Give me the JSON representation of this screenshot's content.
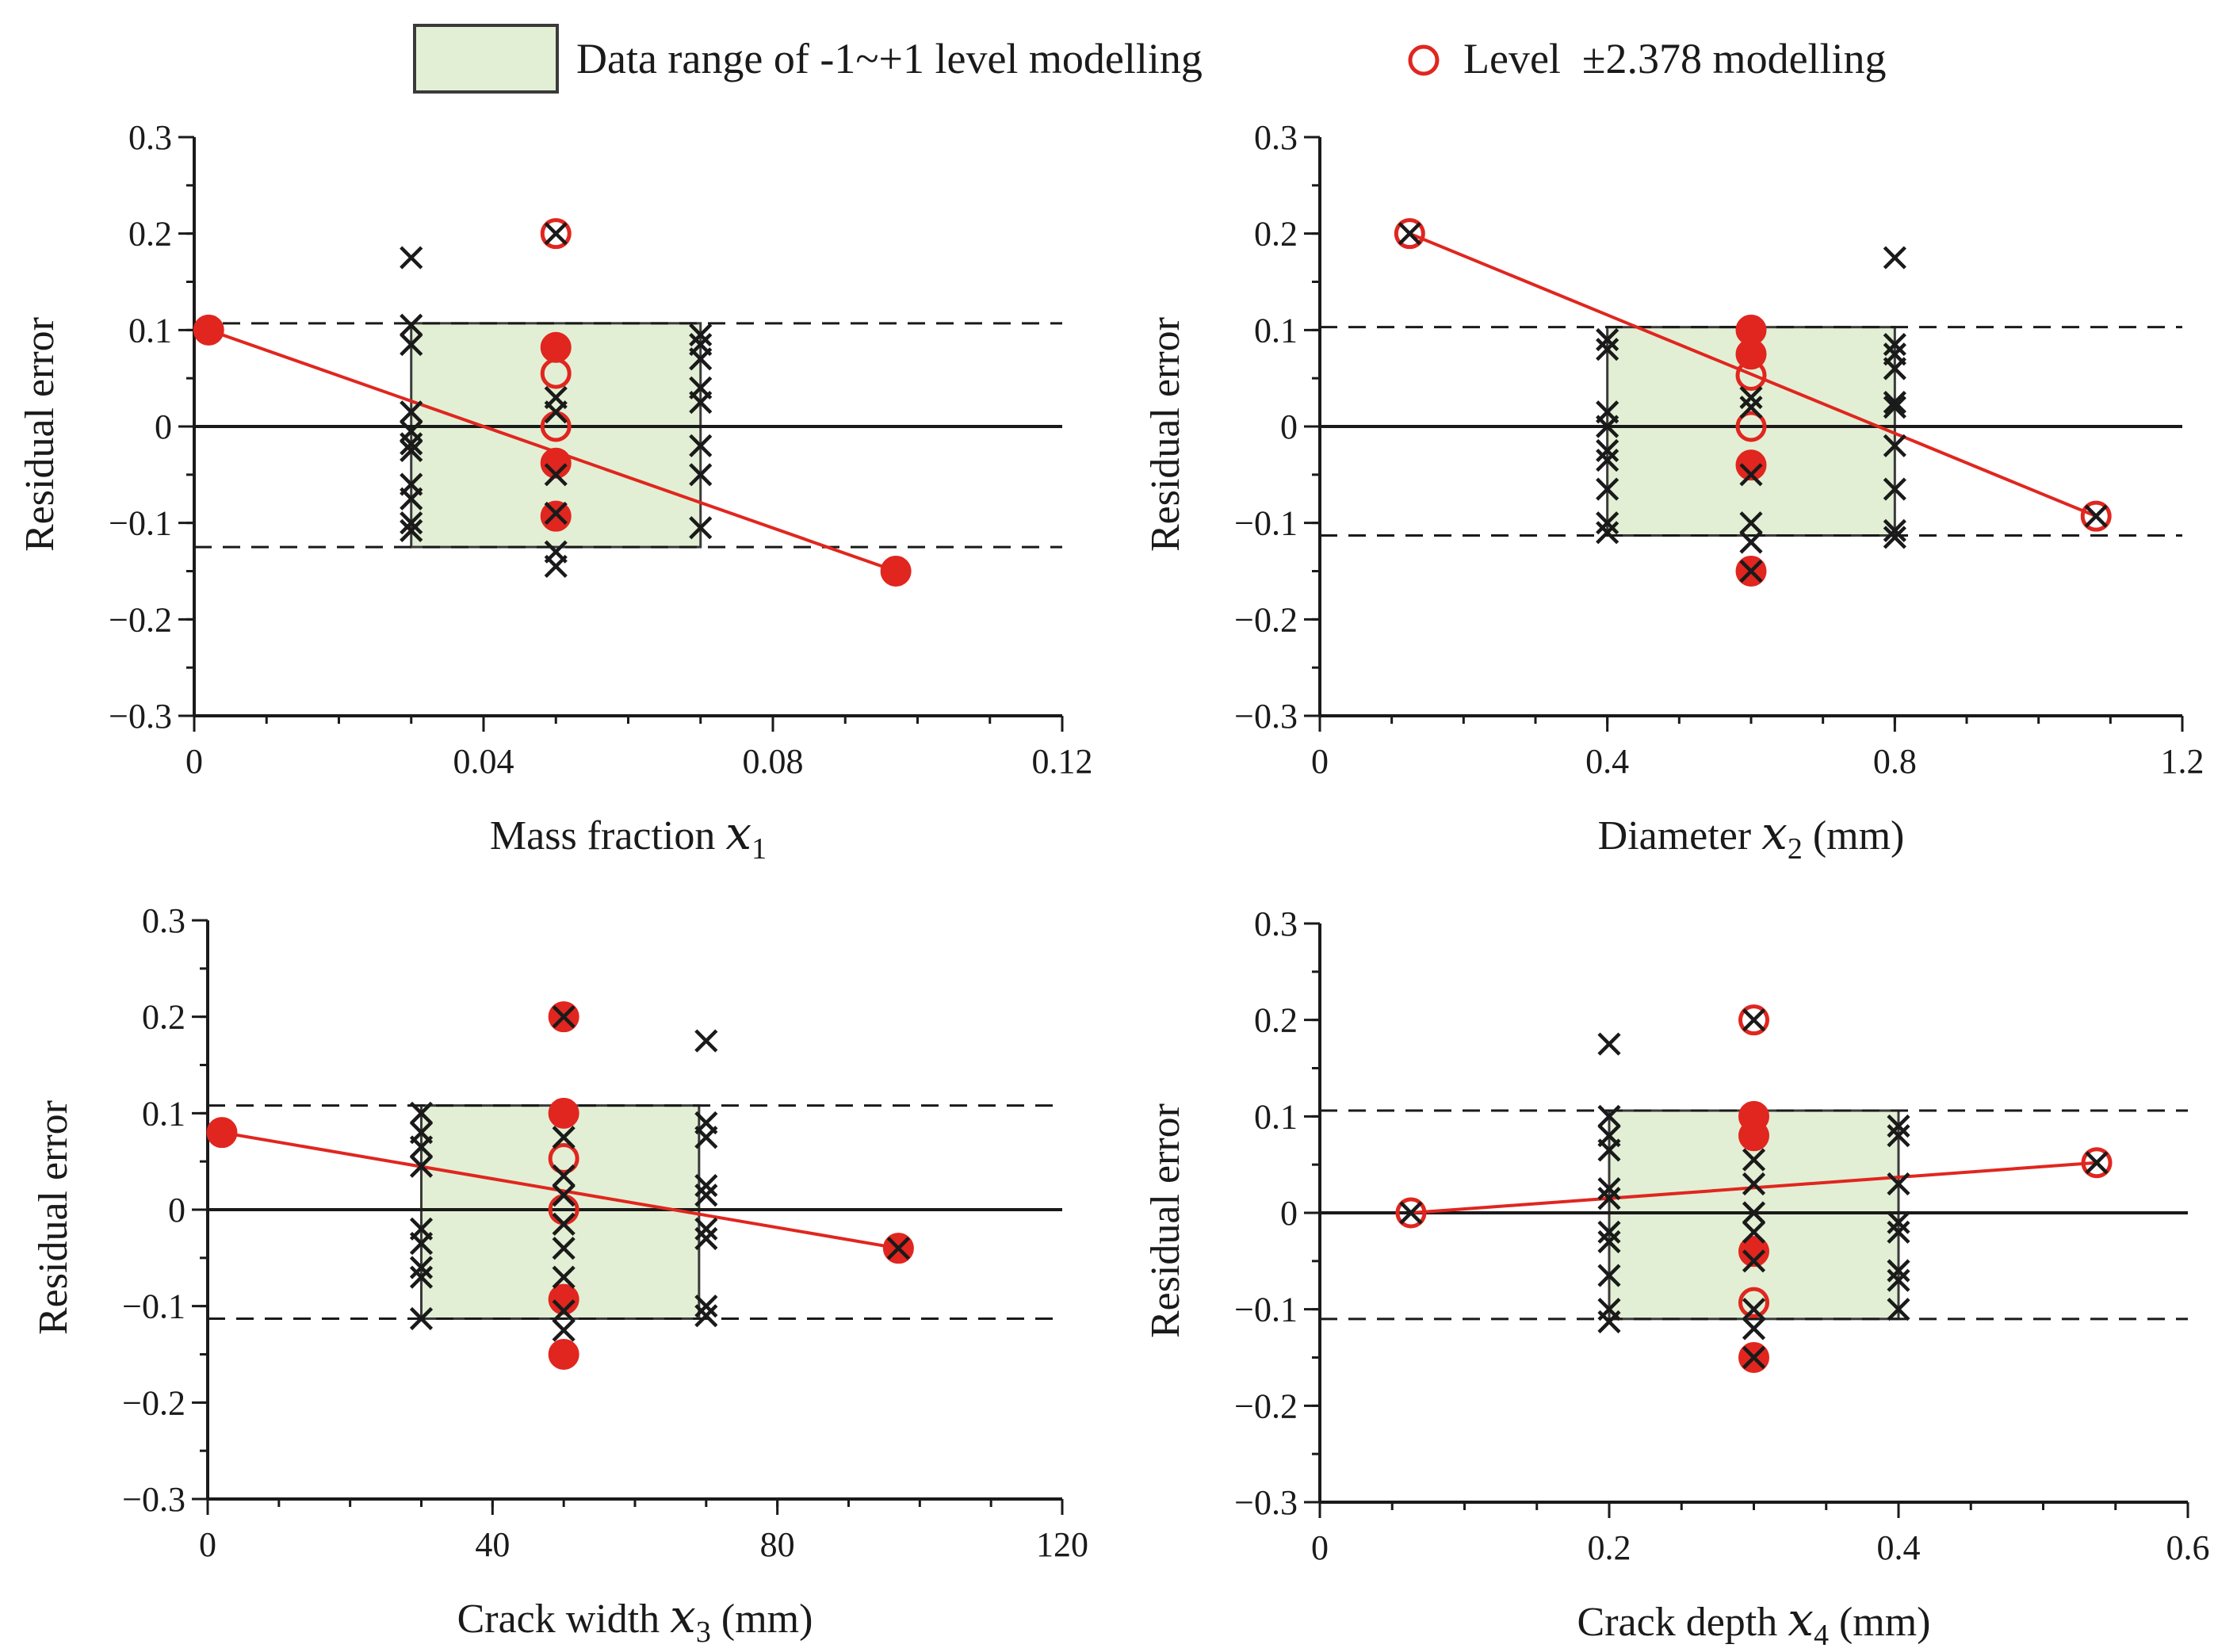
{
  "legend": {
    "range_label": "Data range of -1~+1 level modelling",
    "level_label": "Level  ±2.378 modelling"
  },
  "colors": {
    "accent_red": "#e0261f",
    "range_fill": "#e2efd4",
    "range_stroke": "#3a3a3a",
    "marker_black": "#1a1a1a"
  },
  "chart_data": [
    {
      "type": "scatter",
      "panel": "x1",
      "xlabel": "Mass fraction",
      "var_symbol": "x",
      "var_sub": "1",
      "unit": "",
      "ylabel": "Residual error",
      "xlim": [
        0,
        0.12
      ],
      "ylim": [
        -0.3,
        0.3
      ],
      "x_major_ticks": [
        0,
        0.04,
        0.08,
        0.12
      ],
      "x_tick_labels": [
        "0",
        "0.04",
        "0.08",
        "0.12"
      ],
      "x_minor_step": 0.01,
      "y_ticks": [
        -0.3,
        -0.2,
        -0.1,
        0,
        0.1,
        0.2,
        0.3
      ],
      "y_tick_labels": [
        "−0.3",
        "−0.2",
        "−0.1",
        "0",
        "0.1",
        "0.2",
        "0.3"
      ],
      "y_minor_step": 0.05,
      "range_box": {
        "x": [
          0.03,
          0.07
        ],
        "y": [
          -0.125,
          0.107
        ]
      },
      "dashed_lines": [
        0.107,
        -0.125
      ],
      "trend_line": [
        [
          0.002,
          0.1
        ],
        [
          0.097,
          -0.15
        ]
      ],
      "level_points": [
        {
          "x": 0.002,
          "y": 0.1,
          "filled": true
        },
        {
          "x": 0.05,
          "y": 0.2,
          "filled": false
        },
        {
          "x": 0.05,
          "y": 0.082,
          "filled": true
        },
        {
          "x": 0.05,
          "y": 0.055,
          "filled": false
        },
        {
          "x": 0.05,
          "y": 0.0,
          "filled": false
        },
        {
          "x": 0.05,
          "y": -0.038,
          "filled": true
        },
        {
          "x": 0.05,
          "y": -0.093,
          "filled": true
        },
        {
          "x": 0.097,
          "y": -0.15,
          "filled": true
        }
      ],
      "cross_points": [
        {
          "x": 0.03,
          "y": 0.175
        },
        {
          "x": 0.03,
          "y": 0.105
        },
        {
          "x": 0.03,
          "y": 0.085
        },
        {
          "x": 0.03,
          "y": 0.015
        },
        {
          "x": 0.03,
          "y": -0.005
        },
        {
          "x": 0.03,
          "y": -0.018
        },
        {
          "x": 0.03,
          "y": -0.025
        },
        {
          "x": 0.03,
          "y": -0.06
        },
        {
          "x": 0.03,
          "y": -0.075
        },
        {
          "x": 0.03,
          "y": -0.1
        },
        {
          "x": 0.03,
          "y": -0.108
        },
        {
          "x": 0.05,
          "y": 0.2
        },
        {
          "x": 0.05,
          "y": 0.03
        },
        {
          "x": 0.05,
          "y": 0.015
        },
        {
          "x": 0.05,
          "y": -0.05
        },
        {
          "x": 0.05,
          "y": -0.09
        },
        {
          "x": 0.05,
          "y": -0.13
        },
        {
          "x": 0.05,
          "y": -0.145
        },
        {
          "x": 0.07,
          "y": 0.095
        },
        {
          "x": 0.07,
          "y": 0.085
        },
        {
          "x": 0.07,
          "y": 0.07
        },
        {
          "x": 0.07,
          "y": 0.04
        },
        {
          "x": 0.07,
          "y": 0.025
        },
        {
          "x": 0.07,
          "y": -0.02
        },
        {
          "x": 0.07,
          "y": -0.05
        },
        {
          "x": 0.07,
          "y": -0.105
        }
      ]
    },
    {
      "type": "scatter",
      "panel": "x2",
      "xlabel": "Diameter",
      "var_symbol": "x",
      "var_sub": "2",
      "unit": "(mm)",
      "ylabel": "Residual error",
      "xlim": [
        0,
        1.2
      ],
      "ylim": [
        -0.3,
        0.3
      ],
      "x_major_ticks": [
        0,
        0.4,
        0.8,
        1.2
      ],
      "x_tick_labels": [
        "0",
        "0.4",
        "0.8",
        "1.2"
      ],
      "x_minor_step": 0.1,
      "y_ticks": [
        -0.3,
        -0.2,
        -0.1,
        0,
        0.1,
        0.2,
        0.3
      ],
      "y_tick_labels": [
        "−0.3",
        "−0.2",
        "−0.1",
        "0",
        "0.1",
        "0.2",
        "0.3"
      ],
      "y_minor_step": 0.05,
      "range_box": {
        "x": [
          0.4,
          0.8
        ],
        "y": [
          -0.113,
          0.103
        ]
      },
      "dashed_lines": [
        0.103,
        -0.113
      ],
      "trend_line": [
        [
          0.125,
          0.2
        ],
        [
          1.08,
          -0.093
        ]
      ],
      "level_points": [
        {
          "x": 0.125,
          "y": 0.2,
          "filled": false
        },
        {
          "x": 0.6,
          "y": 0.1,
          "filled": true
        },
        {
          "x": 0.6,
          "y": 0.075,
          "filled": true
        },
        {
          "x": 0.6,
          "y": 0.053,
          "filled": false
        },
        {
          "x": 0.6,
          "y": 0.0,
          "filled": false
        },
        {
          "x": 0.6,
          "y": -0.04,
          "filled": true
        },
        {
          "x": 0.6,
          "y": -0.15,
          "filled": true
        },
        {
          "x": 1.08,
          "y": -0.093,
          "filled": false
        }
      ],
      "cross_points": [
        {
          "x": 0.125,
          "y": 0.2
        },
        {
          "x": 0.4,
          "y": 0.09
        },
        {
          "x": 0.4,
          "y": 0.08
        },
        {
          "x": 0.4,
          "y": 0.015
        },
        {
          "x": 0.4,
          "y": 0.0
        },
        {
          "x": 0.4,
          "y": -0.025
        },
        {
          "x": 0.4,
          "y": -0.035
        },
        {
          "x": 0.4,
          "y": -0.065
        },
        {
          "x": 0.4,
          "y": -0.1
        },
        {
          "x": 0.4,
          "y": -0.11
        },
        {
          "x": 0.6,
          "y": 0.03
        },
        {
          "x": 0.6,
          "y": 0.02
        },
        {
          "x": 0.6,
          "y": -0.05
        },
        {
          "x": 0.6,
          "y": -0.1
        },
        {
          "x": 0.6,
          "y": -0.12
        },
        {
          "x": 0.6,
          "y": -0.15
        },
        {
          "x": 0.8,
          "y": 0.175
        },
        {
          "x": 0.8,
          "y": 0.085
        },
        {
          "x": 0.8,
          "y": 0.075
        },
        {
          "x": 0.8,
          "y": 0.06
        },
        {
          "x": 0.8,
          "y": 0.025
        },
        {
          "x": 0.8,
          "y": 0.02
        },
        {
          "x": 0.8,
          "y": -0.02
        },
        {
          "x": 0.8,
          "y": -0.065
        },
        {
          "x": 0.8,
          "y": -0.108
        },
        {
          "x": 0.8,
          "y": -0.115
        },
        {
          "x": 1.08,
          "y": -0.093
        }
      ]
    },
    {
      "type": "scatter",
      "panel": "x3",
      "xlabel": "Crack width",
      "var_symbol": "x",
      "var_sub": "3",
      "unit": "(mm)",
      "ylabel": "Residual error",
      "xlim": [
        0,
        120
      ],
      "ylim": [
        -0.3,
        0.3
      ],
      "x_major_ticks": [
        0,
        40,
        80,
        120
      ],
      "x_tick_labels": [
        "0",
        "40",
        "80",
        "120"
      ],
      "x_minor_step": 10,
      "y_ticks": [
        -0.3,
        -0.2,
        -0.1,
        0,
        0.1,
        0.2,
        0.3
      ],
      "y_tick_labels": [
        "−0.3",
        "−0.2",
        "−0.1",
        "0",
        "0.1",
        "0.2",
        "0.3"
      ],
      "y_minor_step": 0.05,
      "range_box": {
        "x": [
          30,
          69
        ],
        "y": [
          -0.113,
          0.108
        ]
      },
      "dashed_lines": [
        0.108,
        -0.113
      ],
      "trend_line": [
        [
          2,
          0.08
        ],
        [
          97,
          -0.04
        ]
      ],
      "level_points": [
        {
          "x": 2,
          "y": 0.08,
          "filled": true
        },
        {
          "x": 50,
          "y": 0.2,
          "filled": true
        },
        {
          "x": 50,
          "y": 0.1,
          "filled": true
        },
        {
          "x": 50,
          "y": 0.053,
          "filled": false
        },
        {
          "x": 50,
          "y": 0.0,
          "filled": false
        },
        {
          "x": 50,
          "y": -0.093,
          "filled": true
        },
        {
          "x": 50,
          "y": -0.15,
          "filled": true
        },
        {
          "x": 97,
          "y": -0.04,
          "filled": true
        }
      ],
      "cross_points": [
        {
          "x": 30,
          "y": 0.1
        },
        {
          "x": 30,
          "y": 0.08
        },
        {
          "x": 30,
          "y": 0.065
        },
        {
          "x": 30,
          "y": 0.045
        },
        {
          "x": 30,
          "y": -0.02
        },
        {
          "x": 30,
          "y": -0.035
        },
        {
          "x": 30,
          "y": -0.06
        },
        {
          "x": 30,
          "y": -0.07
        },
        {
          "x": 30,
          "y": -0.113
        },
        {
          "x": 50,
          "y": 0.2
        },
        {
          "x": 50,
          "y": 0.075
        },
        {
          "x": 50,
          "y": 0.035
        },
        {
          "x": 50,
          "y": 0.015
        },
        {
          "x": 50,
          "y": -0.015
        },
        {
          "x": 50,
          "y": -0.04
        },
        {
          "x": 50,
          "y": -0.07
        },
        {
          "x": 50,
          "y": -0.105
        },
        {
          "x": 50,
          "y": -0.125
        },
        {
          "x": 70,
          "y": 0.175
        },
        {
          "x": 70,
          "y": 0.09
        },
        {
          "x": 70,
          "y": 0.075
        },
        {
          "x": 70,
          "y": 0.025
        },
        {
          "x": 70,
          "y": 0.015
        },
        {
          "x": 70,
          "y": -0.02
        },
        {
          "x": 70,
          "y": -0.03
        },
        {
          "x": 70,
          "y": -0.1
        },
        {
          "x": 70,
          "y": -0.11
        },
        {
          "x": 97,
          "y": -0.04
        }
      ]
    },
    {
      "type": "scatter",
      "panel": "x4",
      "xlabel": "Crack depth",
      "var_symbol": "x",
      "var_sub": "4",
      "unit": "(mm)",
      "ylabel": "Residual error",
      "xlim": [
        0,
        0.6
      ],
      "ylim": [
        -0.3,
        0.3
      ],
      "x_major_ticks": [
        0,
        0.2,
        0.4,
        0.6
      ],
      "x_tick_labels": [
        "0",
        "0.2",
        "0.4",
        "0.6"
      ],
      "x_minor_step": 0.05,
      "y_ticks": [
        -0.3,
        -0.2,
        -0.1,
        0,
        0.1,
        0.2,
        0.3
      ],
      "y_tick_labels": [
        "−0.3",
        "−0.2",
        "−0.1",
        "0",
        "0.1",
        "0.2",
        "0.3"
      ],
      "y_minor_step": 0.05,
      "range_box": {
        "x": [
          0.2,
          0.4
        ],
        "y": [
          -0.11,
          0.106
        ]
      },
      "dashed_lines": [
        0.106,
        -0.11
      ],
      "trend_line": [
        [
          0.063,
          0.0
        ],
        [
          0.537,
          0.052
        ]
      ],
      "level_points": [
        {
          "x": 0.063,
          "y": 0.0,
          "filled": false
        },
        {
          "x": 0.3,
          "y": 0.2,
          "filled": false
        },
        {
          "x": 0.3,
          "y": 0.1,
          "filled": true
        },
        {
          "x": 0.3,
          "y": 0.08,
          "filled": true
        },
        {
          "x": 0.3,
          "y": -0.04,
          "filled": true
        },
        {
          "x": 0.3,
          "y": -0.093,
          "filled": false
        },
        {
          "x": 0.3,
          "y": -0.15,
          "filled": true
        },
        {
          "x": 0.537,
          "y": 0.052,
          "filled": false
        }
      ],
      "cross_points": [
        {
          "x": 0.063,
          "y": 0.0
        },
        {
          "x": 0.2,
          "y": 0.175
        },
        {
          "x": 0.2,
          "y": 0.1
        },
        {
          "x": 0.2,
          "y": 0.08
        },
        {
          "x": 0.2,
          "y": 0.065
        },
        {
          "x": 0.2,
          "y": 0.025
        },
        {
          "x": 0.2,
          "y": 0.015
        },
        {
          "x": 0.2,
          "y": -0.02
        },
        {
          "x": 0.2,
          "y": -0.03
        },
        {
          "x": 0.2,
          "y": -0.065
        },
        {
          "x": 0.2,
          "y": -0.1
        },
        {
          "x": 0.2,
          "y": -0.113
        },
        {
          "x": 0.3,
          "y": 0.2
        },
        {
          "x": 0.3,
          "y": 0.055
        },
        {
          "x": 0.3,
          "y": 0.03
        },
        {
          "x": 0.3,
          "y": 0.0
        },
        {
          "x": 0.3,
          "y": -0.02
        },
        {
          "x": 0.3,
          "y": -0.05
        },
        {
          "x": 0.3,
          "y": -0.1
        },
        {
          "x": 0.3,
          "y": -0.12
        },
        {
          "x": 0.3,
          "y": -0.15
        },
        {
          "x": 0.4,
          "y": 0.09
        },
        {
          "x": 0.4,
          "y": 0.08
        },
        {
          "x": 0.4,
          "y": 0.03
        },
        {
          "x": 0.4,
          "y": -0.01
        },
        {
          "x": 0.4,
          "y": -0.02
        },
        {
          "x": 0.4,
          "y": -0.06
        },
        {
          "x": 0.4,
          "y": -0.07
        },
        {
          "x": 0.4,
          "y": -0.1
        },
        {
          "x": 0.537,
          "y": 0.052
        }
      ]
    }
  ]
}
